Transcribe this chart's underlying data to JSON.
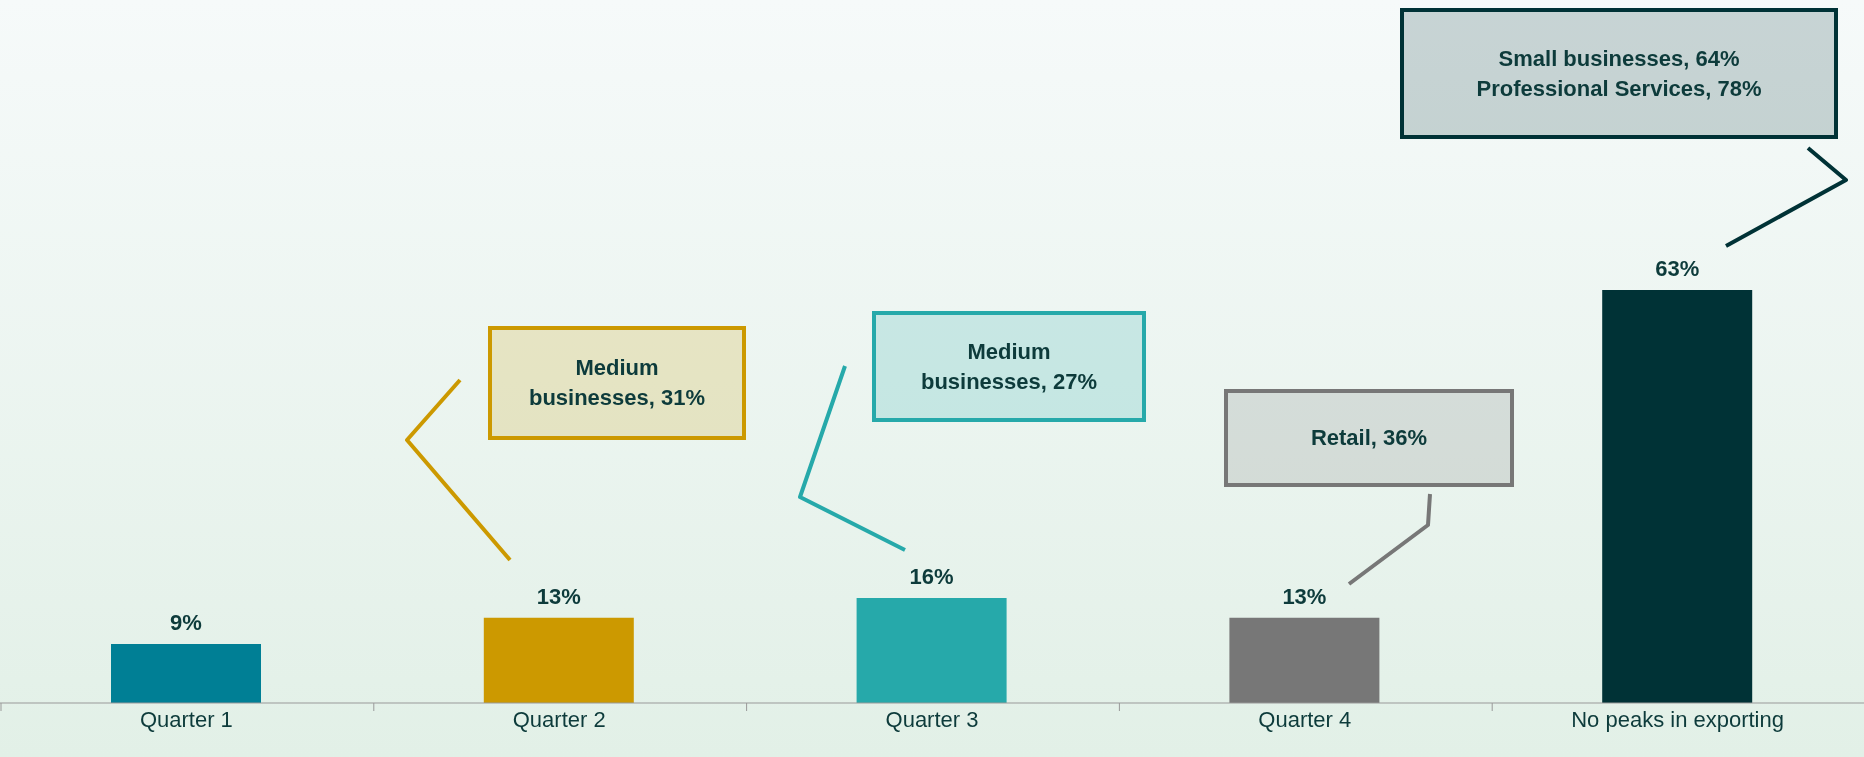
{
  "chart_data": {
    "type": "bar",
    "categories": [
      "Quarter 1",
      "Quarter 2",
      "Quarter 3",
      "Quarter 4",
      "No peaks in exporting"
    ],
    "values": [
      9,
      13,
      16,
      13,
      63
    ],
    "colors": [
      "#007f95",
      "#cc9900",
      "#26a9aa",
      "#777777",
      "#003236"
    ],
    "tick_labels": "x",
    "data_labels": true,
    "value_labels": [
      "9%",
      "13%",
      "16%",
      "13%",
      "63%"
    ],
    "grid": false,
    "legend": false,
    "annotations": [
      "Medium businesses, 31%",
      "Medium businesses, 27%",
      "Retail, 36%",
      "Small businesses, 64%\nProfessional Services, 78%"
    ]
  }
}
